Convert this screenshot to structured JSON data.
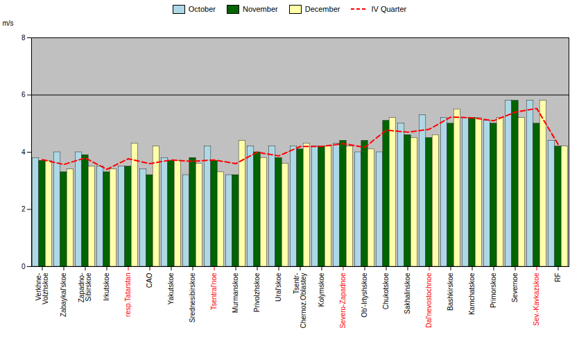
{
  "chart_data": {
    "type": "bar",
    "categories": [
      "Verkhne-\nVolzhskoe",
      "Zabaykal'skoe",
      "Zapadno-\nSibirskoe",
      "Irkutskoe",
      "resp.Tatarstan",
      "CAO",
      "Yakutskoe",
      "Srednesibirskoe",
      "Tsentral'noe",
      "Murmanskoe",
      "Privolzhskoe",
      "Ural'skoe",
      "Tsentr-\nChernoz.Oblastey",
      "Kolymskoe",
      "Severo-Zapadnoe",
      "Ob'-Irtyshskoe",
      "Chukotskoe",
      "Sakhalinskoe",
      "Dal'nevostochnoe",
      "Bashkirskoe",
      "Kamchatskoe",
      "Primorskoe",
      "Severnoe",
      "Sev.-Kavkazskoe",
      "RF"
    ],
    "series": [
      {
        "name": "October",
        "color": "#add8e6",
        "values": [
          3.8,
          4.0,
          4.0,
          3.5,
          3.5,
          3.4,
          3.8,
          3.2,
          4.2,
          3.2,
          4.2,
          4.2,
          4.2,
          4.2,
          4.3,
          4.0,
          4.0,
          5.0,
          5.3,
          5.2,
          5.2,
          5.1,
          5.8,
          5.8,
          4.4
        ]
      },
      {
        "name": "November",
        "color": "#006400",
        "values": [
          3.7,
          3.3,
          3.9,
          3.3,
          3.5,
          3.2,
          3.7,
          3.8,
          3.7,
          3.2,
          4.0,
          3.8,
          4.1,
          4.2,
          4.4,
          4.4,
          5.1,
          4.6,
          4.5,
          5.0,
          5.2,
          5.0,
          5.8,
          5.0,
          4.2
        ]
      },
      {
        "name": "December",
        "color": "#ffffaa",
        "values": [
          3.7,
          3.4,
          3.5,
          3.4,
          4.3,
          4.2,
          3.7,
          3.6,
          3.3,
          4.4,
          3.8,
          3.6,
          4.3,
          4.2,
          4.2,
          4.1,
          5.2,
          4.5,
          4.6,
          5.5,
          5.2,
          5.2,
          5.2,
          5.8,
          4.2
        ]
      },
      {
        "name": "IV Quarter",
        "type": "line",
        "color": "#ff0000",
        "line_style": "dashed",
        "values": [
          3.74,
          3.57,
          3.8,
          3.4,
          3.77,
          3.6,
          3.73,
          3.68,
          3.73,
          3.6,
          4.0,
          3.87,
          4.2,
          4.2,
          4.3,
          4.17,
          4.77,
          4.7,
          4.8,
          5.23,
          5.2,
          5.1,
          5.4,
          5.53,
          4.27
        ]
      }
    ],
    "ylabel": "m/s",
    "ylim": [
      0,
      8
    ],
    "yticks": [
      0,
      2,
      4,
      6,
      8
    ],
    "reference_line": 6.0,
    "background_color": "#c0c0c0",
    "tick_label_colors": [
      "black",
      "black",
      "black",
      "black",
      "red",
      "black",
      "black",
      "black",
      "red",
      "black",
      "black",
      "black",
      "black",
      "black",
      "red",
      "black",
      "black",
      "black",
      "red",
      "black",
      "black",
      "black",
      "black",
      "red",
      "black"
    ],
    "grid": false,
    "legend": "top"
  }
}
